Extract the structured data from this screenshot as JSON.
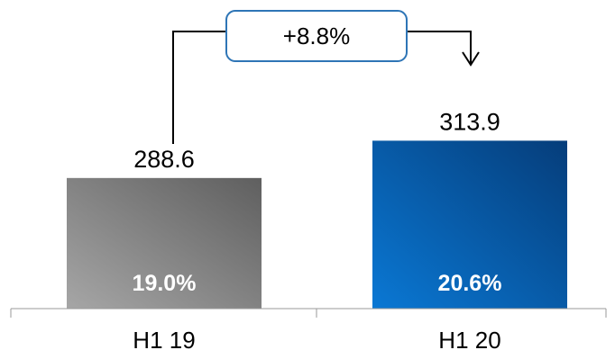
{
  "chart_data": {
    "type": "bar",
    "categories": [
      "H1 19",
      "H1 20"
    ],
    "values": [
      288.6,
      313.9
    ],
    "value_labels": [
      "288.6",
      "313.9"
    ],
    "inner_labels": [
      "19.0%",
      "20.6%"
    ],
    "bar_colors": [
      {
        "light": "#a6a6a6",
        "dark": "#5f5f5f"
      },
      {
        "light": "#0a78d4",
        "dark": "#053d7a"
      }
    ],
    "inner_label_color": "#ffffff",
    "axis_color": "#9a9a9a",
    "growth_label": "+8.8%",
    "growth_box_border": "#2e75b6",
    "arrow_color": "#000000",
    "ylim": [
      200,
      330
    ],
    "grid": false,
    "title": "",
    "xlabel": "",
    "ylabel": ""
  }
}
